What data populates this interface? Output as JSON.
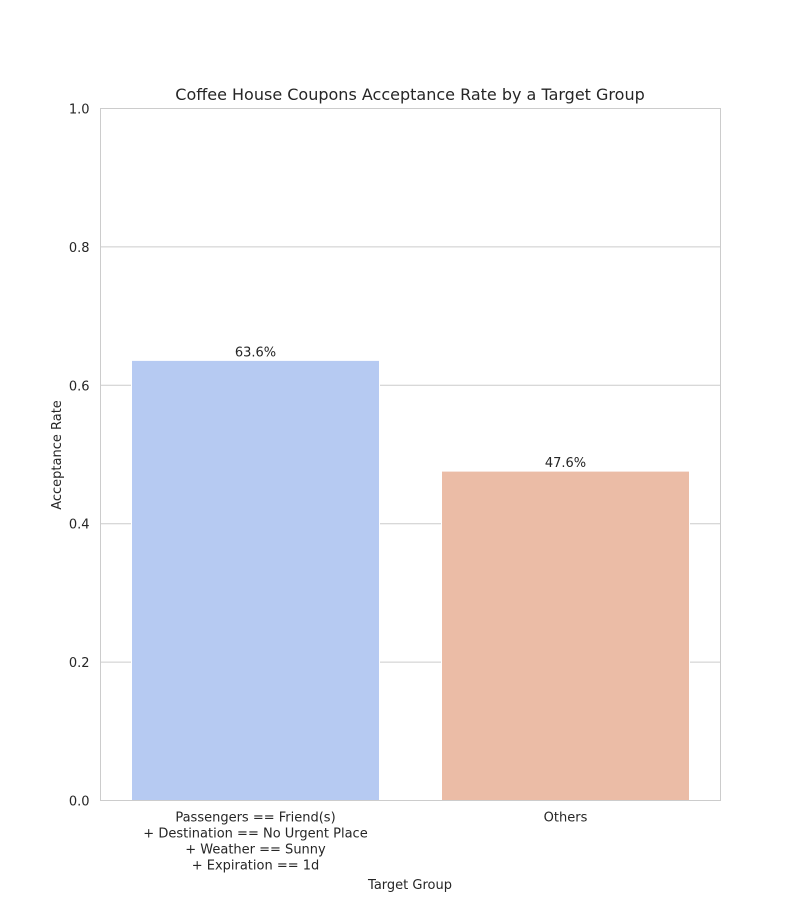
{
  "chart_data": {
    "type": "bar",
    "title": "Coffee House Coupons Acceptance Rate by a Target Group",
    "xlabel": "Target Group",
    "ylabel": "Acceptance Rate",
    "categories": [
      [
        "Passengers == Friend(s)",
        "+ Destination == No Urgent Place",
        "+ Weather == Sunny",
        "+ Expiration == 1d"
      ],
      [
        "Others"
      ]
    ],
    "values": [
      0.636,
      0.476
    ],
    "data_labels": [
      "63.6%",
      "47.6%"
    ],
    "colors": [
      "#b6caf2",
      "#ebbca6"
    ],
    "ylim": [
      0,
      1.0
    ],
    "yticks": [
      0.0,
      0.2,
      0.4,
      0.6,
      0.8,
      1.0
    ],
    "ytick_labels": [
      "0.0",
      "0.2",
      "0.4",
      "0.6",
      "0.8",
      "1.0"
    ],
    "grid": "horizontal",
    "legend": "none"
  }
}
